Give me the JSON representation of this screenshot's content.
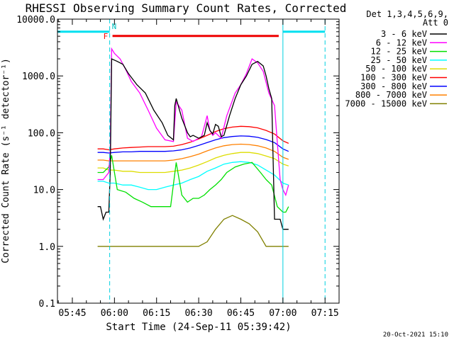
{
  "chart_data": {
    "type": "line",
    "title": "RHESSI Observing Summary Count Rates, Corrected",
    "ylabel": "Corrected Count Rate (s⁻¹ detector⁻¹)",
    "xlabel": "Start Time (24-Sep-11 05:39:42)",
    "y_scale": "log",
    "ylim": [
      0.1,
      10000.0
    ],
    "y_ticks": [
      {
        "value": 0.1,
        "label": "0.1"
      },
      {
        "value": 1,
        "label": "1.0"
      },
      {
        "value": 10,
        "label": "10.0"
      },
      {
        "value": 100,
        "label": "100.0"
      },
      {
        "value": 1000,
        "label": "1000.0"
      },
      {
        "value": 10000,
        "label": "10000.0"
      }
    ],
    "x_unit": "minutes",
    "xlim": [
      339.7,
      440
    ],
    "x_ticks": [
      {
        "value": 345,
        "label": "05:45"
      },
      {
        "value": 360,
        "label": "06:00"
      },
      {
        "value": 375,
        "label": "06:15"
      },
      {
        "value": 390,
        "label": "06:30"
      },
      {
        "value": 405,
        "label": "06:45"
      },
      {
        "value": 420,
        "label": "07:00"
      },
      {
        "value": 435,
        "label": "07:15"
      }
    ],
    "legend_header": [
      "Det 1,3,4,5,6,9,",
      "Att 0"
    ],
    "legend_position": "right",
    "series": [
      {
        "name": "3 - 6 keV",
        "color": "#000000",
        "x": [
          354,
          355,
          356,
          357,
          358,
          358.5,
          359,
          361,
          363,
          365,
          368,
          371,
          374,
          377,
          379,
          381,
          381.5,
          382,
          384,
          386,
          387,
          388,
          390,
          392,
          393,
          394,
          395,
          396,
          397,
          398,
          399,
          401,
          403,
          405,
          407,
          409,
          411,
          413,
          414,
          415,
          416,
          417,
          419,
          420,
          421,
          422
        ],
        "y": [
          5,
          5,
          3,
          4,
          4,
          20,
          2000,
          1800,
          1600,
          1100,
          700,
          500,
          250,
          150,
          90,
          75,
          300,
          400,
          180,
          100,
          85,
          90,
          80,
          90,
          150,
          110,
          95,
          140,
          130,
          85,
          90,
          200,
          400,
          700,
          1000,
          1600,
          1800,
          1500,
          1000,
          600,
          400,
          3,
          3,
          2,
          2,
          2
        ]
      },
      {
        "name": "6 - 12 keV",
        "color": "#ff00ff",
        "x": [
          354,
          356,
          358,
          358.5,
          359,
          360,
          362,
          364,
          366,
          369,
          372,
          375,
          378,
          381,
          382,
          384,
          386,
          388,
          389,
          391,
          393,
          394,
          395,
          396,
          398,
          400,
          403,
          405,
          407,
          409,
          411,
          413,
          415,
          417,
          419,
          420,
          421,
          422
        ],
        "y": [
          15,
          15,
          20,
          50,
          3000,
          2500,
          2000,
          1300,
          800,
          500,
          250,
          120,
          75,
          70,
          350,
          250,
          80,
          70,
          75,
          85,
          200,
          110,
          90,
          100,
          80,
          200,
          500,
          700,
          1100,
          2000,
          1700,
          1200,
          500,
          300,
          15,
          10,
          8,
          12
        ]
      },
      {
        "name": "12 - 25 keV",
        "color": "#00e000",
        "x": [
          354,
          356,
          358,
          359,
          361,
          364,
          367,
          370,
          373,
          375,
          378,
          380,
          382,
          384,
          386,
          388,
          390,
          392,
          394,
          396,
          398,
          400,
          403,
          406,
          409,
          412,
          414,
          416,
          418,
          420,
          421,
          422
        ],
        "y": [
          20,
          20,
          25,
          40,
          10,
          9,
          7,
          6,
          5,
          5,
          5,
          5,
          30,
          8,
          6,
          7,
          7,
          8,
          10,
          12,
          15,
          20,
          25,
          28,
          30,
          20,
          15,
          12,
          5,
          4,
          4,
          5
        ]
      },
      {
        "name": "25 - 50 keV",
        "color": "#00ffff",
        "x": [
          354,
          356,
          358,
          360,
          363,
          366,
          369,
          372,
          375,
          378,
          381,
          384,
          387,
          390,
          393,
          396,
          399,
          402,
          405,
          408,
          411,
          414,
          417,
          420,
          422
        ],
        "y": [
          14,
          14,
          13,
          13,
          12,
          12,
          11,
          10,
          10,
          11,
          12,
          13,
          15,
          17,
          21,
          24,
          28,
          30,
          31,
          30,
          27,
          22,
          18,
          13,
          12
        ]
      },
      {
        "name": "50 - 100 keV",
        "color": "#dddd00",
        "x": [
          354,
          356,
          358,
          360,
          363,
          366,
          369,
          372,
          375,
          378,
          381,
          384,
          387,
          390,
          393,
          396,
          399,
          402,
          405,
          408,
          411,
          414,
          417,
          420,
          422
        ],
        "y": [
          24,
          24,
          22,
          22,
          21,
          21,
          20,
          20,
          20,
          20,
          21,
          22,
          24,
          27,
          31,
          36,
          40,
          43,
          45,
          45,
          43,
          39,
          35,
          28,
          26
        ]
      },
      {
        "name": "100 - 300 keV",
        "color": "#ff0000",
        "x": [
          354,
          356,
          358,
          360,
          363,
          366,
          369,
          372,
          375,
          378,
          381,
          384,
          387,
          390,
          393,
          396,
          399,
          402,
          405,
          408,
          411,
          414,
          417,
          420,
          422
        ],
        "y": [
          52,
          52,
          50,
          52,
          54,
          55,
          56,
          57,
          57,
          57,
          58,
          62,
          68,
          78,
          90,
          105,
          118,
          126,
          130,
          128,
          122,
          110,
          95,
          72,
          65
        ]
      },
      {
        "name": "300 - 800 keV",
        "color": "#0000ff",
        "x": [
          354,
          356,
          358,
          360,
          363,
          366,
          369,
          372,
          375,
          378,
          381,
          384,
          387,
          390,
          393,
          396,
          399,
          402,
          405,
          408,
          411,
          414,
          417,
          420,
          422
        ],
        "y": [
          45,
          45,
          44,
          45,
          46,
          46,
          47,
          47,
          47,
          47,
          48,
          50,
          54,
          60,
          67,
          75,
          82,
          86,
          88,
          87,
          83,
          76,
          67,
          52,
          47
        ]
      },
      {
        "name": "800 - 7000 keV",
        "color": "#ff8000",
        "x": [
          354,
          356,
          358,
          360,
          363,
          366,
          369,
          372,
          375,
          378,
          381,
          384,
          387,
          390,
          393,
          396,
          399,
          402,
          405,
          408,
          411,
          414,
          417,
          420,
          422
        ],
        "y": [
          33,
          33,
          32,
          32,
          32,
          32,
          32,
          32,
          32,
          32,
          33,
          35,
          38,
          42,
          48,
          54,
          59,
          62,
          63,
          62,
          59,
          54,
          47,
          37,
          34
        ]
      },
      {
        "name": "7000 - 15000 keV",
        "color": "#808000",
        "x": [
          354,
          356,
          358,
          360,
          363,
          366,
          369,
          372,
          375,
          378,
          381,
          384,
          387,
          390,
          393,
          396,
          399,
          402,
          405,
          408,
          411,
          414,
          417,
          420,
          422
        ],
        "y": [
          1,
          1,
          1,
          1,
          1,
          1,
          1,
          1,
          1,
          1,
          1,
          1,
          1,
          1,
          1.2,
          2,
          3,
          3.5,
          3,
          2.5,
          1.8,
          1,
          1,
          1,
          1
        ]
      }
    ],
    "annotations": {
      "flags": [
        {
          "label": "F",
          "color": "#ff0000"
        },
        {
          "label": "N",
          "color": "#00c0c0"
        }
      ],
      "night_bands_y": 6000,
      "night_segments": [
        [
          339.7,
          358.3
        ],
        [
          420,
          435
        ]
      ],
      "flare_segment": [
        359.3,
        418.5
      ],
      "saa_dashed_lines": [
        358.3,
        435
      ],
      "solid_lines": [
        339.7,
        420
      ]
    },
    "footer_date": "20-Oct-2021 15:10"
  }
}
